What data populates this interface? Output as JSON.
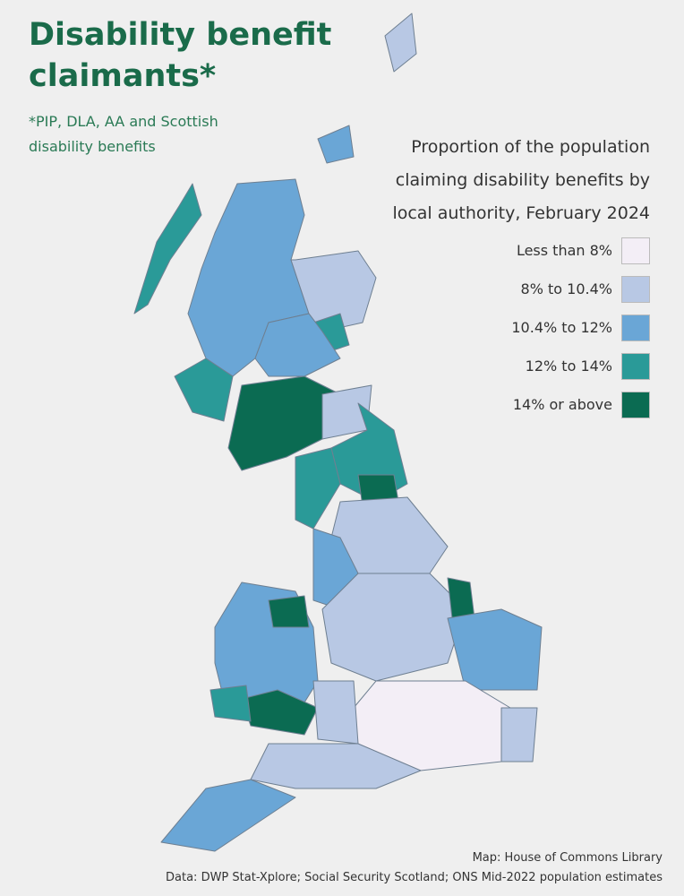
{
  "title": "Disability benefit claimants*",
  "subtitle": "*PIP, DLA, AA and Scottish disability benefits",
  "legend": {
    "title": "Proportion of the population claiming disability benefits by local authority, February 2024",
    "items": [
      {
        "label": "Less than 8%",
        "color": "#f3eef6"
      },
      {
        "label": "8% to 10.4%",
        "color": "#b8c8e4"
      },
      {
        "label": "10.4% to 12%",
        "color": "#6aa6d6"
      },
      {
        "label": "12% to 14%",
        "color": "#2a9a98"
      },
      {
        "label": "14% or above",
        "color": "#0b6b52"
      }
    ]
  },
  "source": {
    "map": "Map: House of Commons Library",
    "data": "Data: DWP Stat-Xplore; Social Security Scotland; ONS Mid-2022 population estimates"
  }
}
